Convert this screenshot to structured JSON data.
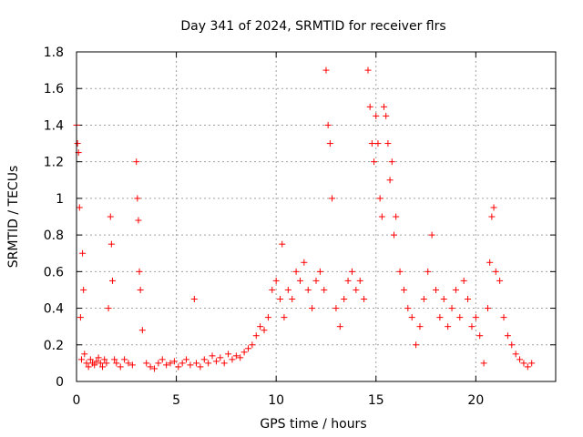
{
  "chart_data": {
    "type": "scatter",
    "title": "Day 341 of 2024, SRMTID for receiver flrs",
    "xlabel": "GPS time / hours",
    "ylabel": "SRMTID / TECUs",
    "xlim": [
      0,
      24
    ],
    "ylim": [
      0,
      1.8
    ],
    "xticks": [
      0,
      5,
      10,
      15,
      20
    ],
    "xtick_labels": [
      "0",
      "5",
      "10",
      "15",
      "20"
    ],
    "yticks": [
      0,
      0.2,
      0.4,
      0.6,
      0.8,
      1.0,
      1.2,
      1.4,
      1.6,
      1.8
    ],
    "ytick_labels": [
      "0",
      "0.2",
      "0.4",
      "0.6",
      "0.8",
      "1",
      "1.2",
      "1.4",
      "1.6",
      "1.8"
    ],
    "grid": true,
    "marker": "+",
    "color": "#ff0000",
    "series": [
      {
        "name": "SRMTID",
        "x": [
          0.0,
          0.05,
          0.1,
          0.15,
          0.2,
          0.25,
          0.3,
          0.35,
          0.4,
          0.5,
          0.6,
          0.7,
          0.8,
          0.9,
          1.0,
          1.1,
          1.2,
          1.3,
          1.4,
          1.5,
          1.6,
          1.7,
          1.75,
          1.8,
          1.9,
          2.0,
          2.2,
          2.4,
          2.6,
          2.8,
          3.0,
          3.05,
          3.1,
          3.15,
          3.2,
          3.3,
          3.5,
          3.7,
          3.9,
          4.1,
          4.3,
          4.5,
          4.7,
          4.9,
          5.1,
          5.3,
          5.5,
          5.7,
          5.9,
          6.0,
          6.2,
          6.4,
          6.6,
          6.8,
          7.0,
          7.2,
          7.4,
          7.6,
          7.8,
          8.0,
          8.2,
          8.4,
          8.6,
          8.8,
          9.0,
          9.2,
          9.4,
          9.6,
          9.8,
          10.0,
          10.2,
          10.3,
          10.4,
          10.6,
          10.8,
          11.0,
          11.2,
          11.4,
          11.6,
          11.8,
          12.0,
          12.2,
          12.4,
          12.5,
          12.6,
          12.7,
          12.8,
          13.0,
          13.2,
          13.4,
          13.6,
          13.8,
          14.0,
          14.2,
          14.4,
          14.6,
          14.7,
          14.8,
          14.9,
          15.0,
          15.1,
          15.2,
          15.3,
          15.4,
          15.5,
          15.6,
          15.7,
          15.8,
          15.9,
          16.0,
          16.2,
          16.4,
          16.6,
          16.8,
          17.0,
          17.2,
          17.4,
          17.6,
          17.8,
          18.0,
          18.2,
          18.4,
          18.6,
          18.8,
          19.0,
          19.2,
          19.4,
          19.6,
          19.8,
          20.0,
          20.2,
          20.4,
          20.6,
          20.7,
          20.8,
          20.9,
          21.0,
          21.2,
          21.4,
          21.6,
          21.8,
          22.0,
          22.2,
          22.4,
          22.6,
          22.8
        ],
        "y": [
          1.4,
          1.3,
          1.25,
          0.95,
          0.35,
          0.12,
          0.7,
          0.5,
          0.15,
          0.1,
          0.08,
          0.12,
          0.1,
          0.09,
          0.11,
          0.13,
          0.1,
          0.08,
          0.12,
          0.1,
          0.4,
          0.9,
          0.75,
          0.55,
          0.12,
          0.1,
          0.08,
          0.12,
          0.1,
          0.09,
          1.2,
          1.0,
          0.88,
          0.6,
          0.5,
          0.28,
          0.1,
          0.08,
          0.07,
          0.1,
          0.12,
          0.09,
          0.1,
          0.11,
          0.08,
          0.1,
          0.12,
          0.09,
          0.45,
          0.1,
          0.08,
          0.12,
          0.1,
          0.14,
          0.11,
          0.13,
          0.1,
          0.15,
          0.12,
          0.14,
          0.13,
          0.16,
          0.18,
          0.2,
          0.25,
          0.3,
          0.28,
          0.35,
          0.5,
          0.55,
          0.45,
          0.75,
          0.35,
          0.5,
          0.45,
          0.6,
          0.55,
          0.65,
          0.5,
          0.4,
          0.55,
          0.6,
          0.5,
          1.7,
          1.4,
          1.3,
          1.0,
          0.4,
          0.3,
          0.45,
          0.55,
          0.6,
          0.5,
          0.55,
          0.45,
          1.7,
          1.5,
          1.3,
          1.2,
          1.45,
          1.3,
          1.0,
          0.9,
          1.5,
          1.45,
          1.3,
          1.1,
          1.2,
          0.8,
          0.9,
          0.6,
          0.5,
          0.4,
          0.35,
          0.2,
          0.3,
          0.45,
          0.6,
          0.8,
          0.5,
          0.35,
          0.45,
          0.3,
          0.4,
          0.5,
          0.35,
          0.55,
          0.45,
          0.3,
          0.35,
          0.25,
          0.1,
          0.4,
          0.65,
          0.9,
          0.95,
          0.6,
          0.55,
          0.35,
          0.25,
          0.2,
          0.15,
          0.12,
          0.1,
          0.08,
          0.1
        ]
      }
    ]
  }
}
